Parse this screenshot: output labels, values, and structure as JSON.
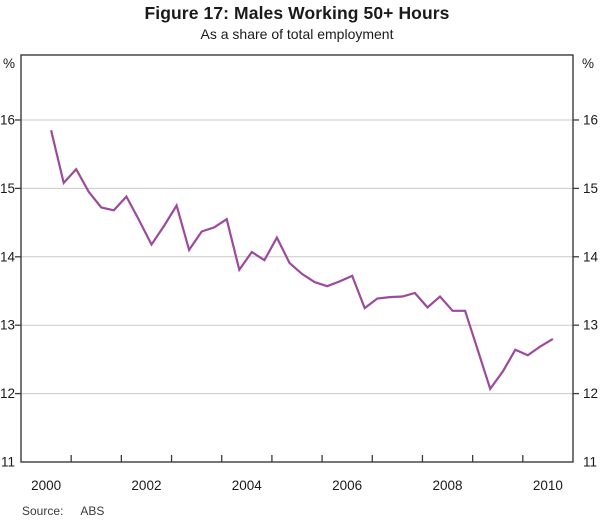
{
  "header": {
    "title": "Figure 17: Males Working 50+ Hours",
    "subtitle": "As a share of total employment"
  },
  "axes": {
    "y_unit_left": "%",
    "y_unit_right": "%"
  },
  "footer": {
    "source_label": "Source:",
    "source_value": "ABS"
  },
  "chart_data": {
    "type": "line",
    "title": "Figure 17: Males Working 50+ Hours",
    "subtitle": "As a share of total employment",
    "ylabel": "%",
    "source": "ABS",
    "xlim": [
      2000,
      2011
    ],
    "ylim": [
      11,
      16.95
    ],
    "grid": true,
    "y_gridlines": [
      12,
      13,
      14,
      15,
      16
    ],
    "y_axis_labels": [
      16,
      15,
      14,
      13,
      12,
      11
    ],
    "x_year_ticks": [
      2001,
      2002,
      2003,
      2004,
      2005,
      2006,
      2007,
      2008,
      2009,
      2010
    ],
    "x_axis_labels": [
      {
        "year": 2000,
        "label": "2000"
      },
      {
        "year": 2002,
        "label": "2002"
      },
      {
        "year": 2004,
        "label": "2004"
      },
      {
        "year": 2006,
        "label": "2006"
      },
      {
        "year": 2008,
        "label": "2008"
      },
      {
        "year": 2010,
        "label": "2010"
      }
    ],
    "colors": {
      "line": "#9C4A9C",
      "grid": "#C9C9C9",
      "frame": "#3C3C3C",
      "text": "#1A1A1A"
    },
    "series": [
      {
        "name": "males-working-50plus-hours-share",
        "color": "#9C4A9C",
        "x": [
          2000.6,
          2000.85,
          2001.1,
          2001.35,
          2001.6,
          2001.85,
          2002.1,
          2002.35,
          2002.6,
          2002.85,
          2003.1,
          2003.35,
          2003.6,
          2003.85,
          2004.1,
          2004.35,
          2004.6,
          2004.85,
          2005.1,
          2005.35,
          2005.6,
          2005.85,
          2006.1,
          2006.35,
          2006.6,
          2006.85,
          2007.1,
          2007.35,
          2007.6,
          2007.85,
          2008.1,
          2008.35,
          2008.6,
          2008.85,
          2009.1,
          2009.35,
          2009.6,
          2009.85,
          2010.1,
          2010.35,
          2010.6
        ],
        "values": [
          15.85,
          15.08,
          15.28,
          14.95,
          14.72,
          14.68,
          14.88,
          14.54,
          14.18,
          14.45,
          14.75,
          14.1,
          14.37,
          14.43,
          14.55,
          13.81,
          14.07,
          13.95,
          14.28,
          13.91,
          13.75,
          13.63,
          13.57,
          13.64,
          13.72,
          13.25,
          13.39,
          13.41,
          13.42,
          13.47,
          13.26,
          13.42,
          13.21,
          13.21,
          12.64,
          12.07,
          12.32,
          12.64,
          12.56,
          12.69,
          12.8
        ]
      }
    ]
  }
}
